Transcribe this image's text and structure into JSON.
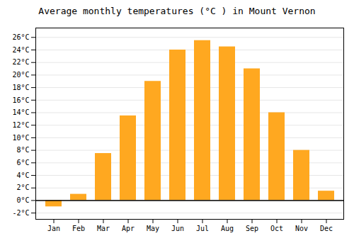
{
  "chart_data": {
    "type": "bar",
    "title": "Average monthly temperatures (°C ) in Mount Vernon",
    "categories": [
      "Jan",
      "Feb",
      "Mar",
      "Apr",
      "May",
      "Jun",
      "Jul",
      "Aug",
      "Sep",
      "Oct",
      "Nov",
      "Dec"
    ],
    "values": [
      -1,
      1,
      7.5,
      13.5,
      19,
      24,
      25.5,
      24.5,
      21,
      14,
      8,
      1.5
    ],
    "color": "#FFA820",
    "ylim": [
      -3,
      27.5
    ],
    "yticks": [
      {
        "value": -2,
        "label": "-2°C"
      },
      {
        "value": 0,
        "label": "0°C"
      },
      {
        "value": 2,
        "label": "2°C"
      },
      {
        "value": 4,
        "label": "4°C"
      },
      {
        "value": 6,
        "label": "6°C"
      },
      {
        "value": 8,
        "label": "8°C"
      },
      {
        "value": 10,
        "label": "10°C"
      },
      {
        "value": 12,
        "label": "12°C"
      },
      {
        "value": 14,
        "label": "14°C"
      },
      {
        "value": 16,
        "label": "16°C"
      },
      {
        "value": 18,
        "label": "18°C"
      },
      {
        "value": 20,
        "label": "20°C"
      },
      {
        "value": 22,
        "label": "22°C"
      },
      {
        "value": 24,
        "label": "24°C"
      },
      {
        "value": 26,
        "label": "26°C"
      }
    ],
    "grid": true
  }
}
